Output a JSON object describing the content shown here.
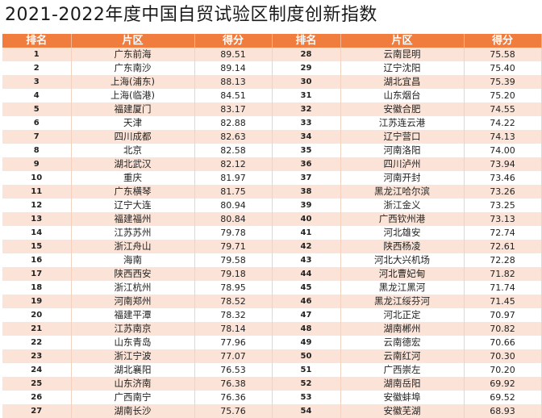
{
  "title": "2021-2022年度中国自贸试验区制度创新指数",
  "headers": {
    "rank": "排名",
    "area": "片区",
    "score": "得分",
    "rank2": "排名",
    "area2": "片区",
    "score2": "得分"
  },
  "colors": {
    "header_bg": "#f07c3e",
    "stripe": "#fbe4d7"
  },
  "left_rows": [
    {
      "rank": "1",
      "area": "广东前海",
      "score": "89.51"
    },
    {
      "rank": "2",
      "area": "广东南沙",
      "score": "89.14"
    },
    {
      "rank": "3",
      "area": "上海(浦东)",
      "score": "88.13"
    },
    {
      "rank": "4",
      "area": "上海(临港)",
      "score": "84.51"
    },
    {
      "rank": "5",
      "area": "福建厦门",
      "score": "83.17"
    },
    {
      "rank": "6",
      "area": "天津",
      "score": "82.88"
    },
    {
      "rank": "7",
      "area": "四川成都",
      "score": "82.63"
    },
    {
      "rank": "8",
      "area": "北京",
      "score": "82.58"
    },
    {
      "rank": "9",
      "area": "湖北武汉",
      "score": "82.12"
    },
    {
      "rank": "10",
      "area": "重庆",
      "score": "81.97"
    },
    {
      "rank": "11",
      "area": "广东横琴",
      "score": "81.75"
    },
    {
      "rank": "12",
      "area": "辽宁大连",
      "score": "80.94"
    },
    {
      "rank": "13",
      "area": "福建福州",
      "score": "80.84"
    },
    {
      "rank": "14",
      "area": "江苏苏州",
      "score": "79.78"
    },
    {
      "rank": "15",
      "area": "浙江舟山",
      "score": "79.71"
    },
    {
      "rank": "16",
      "area": "海南",
      "score": "79.58"
    },
    {
      "rank": "17",
      "area": "陕西西安",
      "score": "79.18"
    },
    {
      "rank": "18",
      "area": "浙江杭州",
      "score": "78.95"
    },
    {
      "rank": "19",
      "area": "河南郑州",
      "score": "78.52"
    },
    {
      "rank": "20",
      "area": "福建平潭",
      "score": "78.32"
    },
    {
      "rank": "21",
      "area": "江苏南京",
      "score": "78.14"
    },
    {
      "rank": "22",
      "area": "山东青岛",
      "score": "77.96"
    },
    {
      "rank": "23",
      "area": "浙江宁波",
      "score": "77.07"
    },
    {
      "rank": "24",
      "area": "湖北襄阳",
      "score": "76.53"
    },
    {
      "rank": "25",
      "area": "山东济南",
      "score": "76.38"
    },
    {
      "rank": "26",
      "area": "广西南宁",
      "score": "76.36"
    },
    {
      "rank": "27",
      "area": "湖南长沙",
      "score": "75.76"
    }
  ],
  "right_rows": [
    {
      "rank": "28",
      "area": "云南昆明",
      "score": "75.58"
    },
    {
      "rank": "29",
      "area": "辽宁沈阳",
      "score": "75.40"
    },
    {
      "rank": "30",
      "area": "湖北宜昌",
      "score": "75.39"
    },
    {
      "rank": "31",
      "area": "山东烟台",
      "score": "75.20"
    },
    {
      "rank": "32",
      "area": "安徽合肥",
      "score": "74.55"
    },
    {
      "rank": "33",
      "area": "江苏连云港",
      "score": "74.22"
    },
    {
      "rank": "34",
      "area": "辽宁营口",
      "score": "74.13"
    },
    {
      "rank": "35",
      "area": "河南洛阳",
      "score": "74.00"
    },
    {
      "rank": "36",
      "area": "四川泸州",
      "score": "73.94"
    },
    {
      "rank": "37",
      "area": "河南开封",
      "score": "73.46"
    },
    {
      "rank": "38",
      "area": "黑龙江哈尔滨",
      "score": "73.26"
    },
    {
      "rank": "39",
      "area": "浙江金义",
      "score": "73.25"
    },
    {
      "rank": "40",
      "area": "广西钦州港",
      "score": "73.13"
    },
    {
      "rank": "41",
      "area": "河北雄安",
      "score": "72.74"
    },
    {
      "rank": "42",
      "area": "陕西杨凌",
      "score": "72.61"
    },
    {
      "rank": "43",
      "area": "河北大兴机场",
      "score": "72.28"
    },
    {
      "rank": "44",
      "area": "河北曹妃甸",
      "score": "71.82"
    },
    {
      "rank": "45",
      "area": "黑龙江黑河",
      "score": "71.74"
    },
    {
      "rank": "46",
      "area": "黑龙江绥芬河",
      "score": "71.45"
    },
    {
      "rank": "47",
      "area": "河北正定",
      "score": "70.97"
    },
    {
      "rank": "48",
      "area": "湖南郴州",
      "score": "70.82"
    },
    {
      "rank": "49",
      "area": "云南德宏",
      "score": "70.66"
    },
    {
      "rank": "50",
      "area": "云南红河",
      "score": "70.30"
    },
    {
      "rank": "51",
      "area": "广西崇左",
      "score": "70.20"
    },
    {
      "rank": "52",
      "area": "湖南岳阳",
      "score": "69.92"
    },
    {
      "rank": "53",
      "area": "安徽蚌埠",
      "score": "69.52"
    },
    {
      "rank": "54",
      "area": "安徽芜湖",
      "score": "68.93"
    }
  ]
}
